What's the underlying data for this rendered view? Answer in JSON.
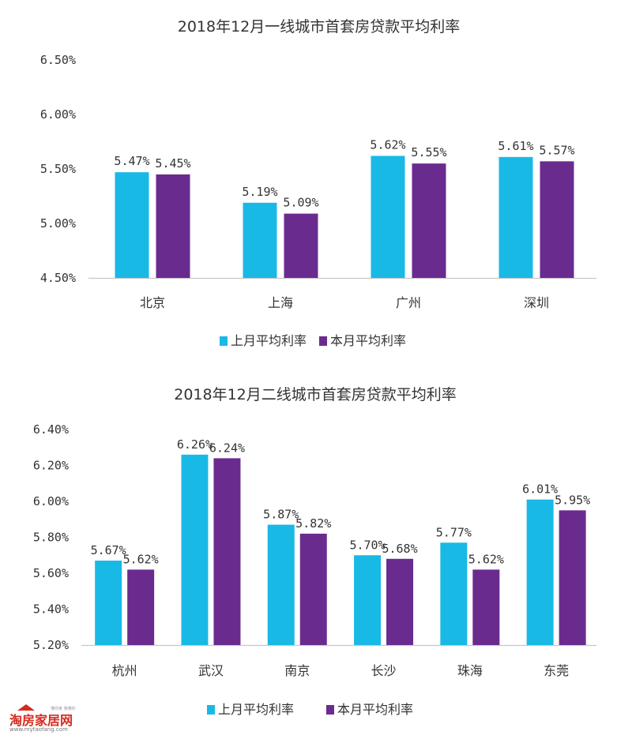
{
  "colors": {
    "last_month": "#19b9e6",
    "this_month": "#6a2b8f",
    "axis": "#c8c8c8"
  },
  "chart_data": [
    {
      "type": "bar",
      "title": "2018年12月一线城市首套房贷款平均利率",
      "categories": [
        "北京",
        "上海",
        "广州",
        "深圳"
      ],
      "ylim": [
        4.5,
        6.5
      ],
      "yticks": [
        4.5,
        5.0,
        5.5,
        6.0,
        6.5
      ],
      "ytick_labels": [
        "4.50%",
        "5.00%",
        "5.50%",
        "6.00%",
        "6.50%"
      ],
      "grid": false,
      "legend_position": "bottom",
      "series": [
        {
          "name": "上月平均利率",
          "values": [
            5.47,
            5.19,
            5.62,
            5.61
          ],
          "labels": [
            "5.47%",
            "5.19%",
            "5.62%",
            "5.61%"
          ]
        },
        {
          "name": "本月平均利率",
          "values": [
            5.45,
            5.09,
            5.55,
            5.57
          ],
          "labels": [
            "5.45%",
            "5.09%",
            "5.55%",
            "5.57%"
          ]
        }
      ]
    },
    {
      "type": "bar",
      "title": "2018年12月二线城市首套房贷款平均利率",
      "categories": [
        "杭州",
        "武汉",
        "南京",
        "长沙",
        "珠海",
        "东莞"
      ],
      "ylim": [
        5.2,
        6.4
      ],
      "yticks": [
        5.2,
        5.4,
        5.6,
        5.8,
        6.0,
        6.2,
        6.4
      ],
      "ytick_labels": [
        "5.20%",
        "5.40%",
        "5.60%",
        "5.80%",
        "6.00%",
        "6.20%",
        "6.40%"
      ],
      "grid": false,
      "legend_position": "bottom",
      "series": [
        {
          "name": "上月平均利率",
          "values": [
            5.67,
            6.26,
            5.87,
            5.7,
            5.77,
            6.01
          ],
          "labels": [
            "5.67%",
            "6.26%",
            "5.87%",
            "5.70%",
            "5.77%",
            "6.01%"
          ]
        },
        {
          "name": "本月平均利率",
          "values": [
            5.62,
            6.24,
            5.82,
            5.68,
            5.62,
            5.95
          ],
          "labels": [
            "5.62%",
            "6.24%",
            "5.82%",
            "5.68%",
            "5.62%",
            "5.95%"
          ]
        }
      ]
    }
  ],
  "watermark": {
    "logo": "淘房家居网",
    "tagline": "懂你家 我懂你",
    "url": "www.mytaofang.com"
  }
}
